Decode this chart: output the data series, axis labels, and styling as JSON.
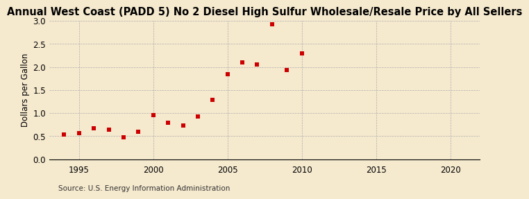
{
  "title": "Annual West Coast (PADD 5) No 2 Diesel High Sulfur Wholesale/Resale Price by All Sellers",
  "ylabel": "Dollars per Gallon",
  "source": "Source: U.S. Energy Information Administration",
  "years": [
    1994,
    1995,
    1996,
    1997,
    1998,
    1999,
    2000,
    2001,
    2002,
    2003,
    2004,
    2005,
    2006,
    2007,
    2008,
    2009,
    2010
  ],
  "values": [
    0.54,
    0.56,
    0.67,
    0.64,
    0.48,
    0.59,
    0.96,
    0.79,
    0.73,
    0.93,
    1.29,
    1.84,
    2.1,
    2.05,
    2.93,
    1.93,
    2.29
  ],
  "xlim": [
    1993,
    2022
  ],
  "ylim": [
    0.0,
    3.0
  ],
  "xticks": [
    1995,
    2000,
    2005,
    2010,
    2015,
    2020
  ],
  "yticks": [
    0.0,
    0.5,
    1.0,
    1.5,
    2.0,
    2.5,
    3.0
  ],
  "marker_color": "#cc0000",
  "marker_size": 5,
  "background_color": "#f5e9ce",
  "grid_color": "#aaaaaa",
  "title_fontsize": 10.5,
  "label_fontsize": 8.5,
  "tick_fontsize": 8.5,
  "source_fontsize": 7.5
}
